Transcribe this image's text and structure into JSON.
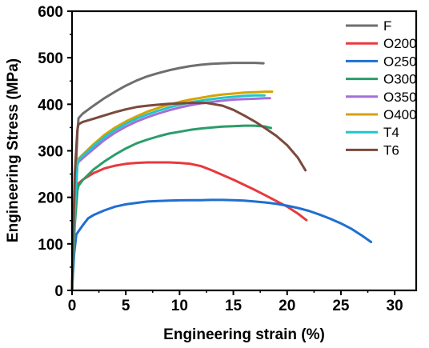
{
  "chart_data": {
    "type": "line",
    "xlabel": "Engineering strain (%)",
    "ylabel": "Engineering Stress (MPa)",
    "xlim": [
      0,
      32
    ],
    "ylim": [
      0,
      600
    ],
    "x_ticks": [
      0,
      5,
      10,
      15,
      20,
      25,
      30
    ],
    "y_ticks": [
      0,
      100,
      200,
      300,
      400,
      500,
      600
    ],
    "grid": false,
    "legend_position": "top-right",
    "series": [
      {
        "name": "F",
        "color": "#6e6e6e",
        "points": [
          [
            0,
            0
          ],
          [
            0.25,
            200
          ],
          [
            0.5,
            340
          ],
          [
            0.6,
            370
          ],
          [
            1,
            380
          ],
          [
            2,
            397
          ],
          [
            3,
            413
          ],
          [
            4,
            427
          ],
          [
            5,
            440
          ],
          [
            6,
            451
          ],
          [
            7,
            460
          ],
          [
            8,
            467
          ],
          [
            9,
            473
          ],
          [
            10,
            478
          ],
          [
            11,
            482
          ],
          [
            12,
            485
          ],
          [
            13,
            487
          ],
          [
            14,
            488
          ],
          [
            15,
            489
          ],
          [
            16,
            489
          ],
          [
            17,
            489
          ],
          [
            17.8,
            488
          ]
        ]
      },
      {
        "name": "O200",
        "color": "#e8393d",
        "points": [
          [
            0,
            0
          ],
          [
            0.25,
            150
          ],
          [
            0.5,
            222
          ],
          [
            0.6,
            230
          ],
          [
            1,
            238
          ],
          [
            2,
            252
          ],
          [
            3,
            262
          ],
          [
            4,
            268
          ],
          [
            5,
            272
          ],
          [
            6,
            274
          ],
          [
            7,
            275
          ],
          [
            8,
            275
          ],
          [
            9,
            275
          ],
          [
            10,
            274
          ],
          [
            11,
            272
          ],
          [
            12,
            267
          ],
          [
            13,
            258
          ],
          [
            14,
            248
          ],
          [
            15,
            238
          ],
          [
            16,
            227
          ],
          [
            17,
            216
          ],
          [
            18,
            204
          ],
          [
            19,
            192
          ],
          [
            20,
            180
          ],
          [
            21,
            165
          ],
          [
            21.8,
            151
          ]
        ]
      },
      {
        "name": "O250",
        "color": "#1f6fd1",
        "points": [
          [
            0,
            0
          ],
          [
            0.2,
            80
          ],
          [
            0.4,
            120
          ],
          [
            0.6,
            127
          ],
          [
            1,
            140
          ],
          [
            1.5,
            155
          ],
          [
            2,
            162
          ],
          [
            3,
            172
          ],
          [
            4,
            180
          ],
          [
            5,
            185
          ],
          [
            6,
            188
          ],
          [
            7,
            191
          ],
          [
            8,
            192
          ],
          [
            9,
            193
          ],
          [
            10,
            193.5
          ],
          [
            11,
            194
          ],
          [
            12,
            194
          ],
          [
            13,
            194.5
          ],
          [
            14,
            194.5
          ],
          [
            15,
            194
          ],
          [
            16,
            193
          ],
          [
            17,
            191
          ],
          [
            18,
            189
          ],
          [
            19,
            186
          ],
          [
            20,
            182
          ],
          [
            21,
            177
          ],
          [
            22,
            171
          ],
          [
            23,
            163
          ],
          [
            24,
            154
          ],
          [
            25,
            144
          ],
          [
            26,
            132
          ],
          [
            27,
            117
          ],
          [
            27.8,
            104
          ]
        ]
      },
      {
        "name": "O300",
        "color": "#2a9d6a",
        "points": [
          [
            0,
            0
          ],
          [
            0.25,
            140
          ],
          [
            0.5,
            215
          ],
          [
            0.6,
            225
          ],
          [
            1,
            237
          ],
          [
            2,
            260
          ],
          [
            3,
            277
          ],
          [
            4,
            292
          ],
          [
            5,
            305
          ],
          [
            6,
            316
          ],
          [
            7,
            324
          ],
          [
            8,
            331
          ],
          [
            9,
            337
          ],
          [
            10,
            341
          ],
          [
            11,
            345
          ],
          [
            12,
            348
          ],
          [
            13,
            350
          ],
          [
            14,
            352
          ],
          [
            15,
            353
          ],
          [
            16,
            354
          ],
          [
            17,
            354
          ],
          [
            18,
            352
          ],
          [
            18.5,
            349
          ]
        ]
      },
      {
        "name": "O350",
        "color": "#a56fd8",
        "points": [
          [
            0,
            0
          ],
          [
            0.25,
            170
          ],
          [
            0.5,
            270
          ],
          [
            0.6,
            276
          ],
          [
            1,
            284
          ],
          [
            2,
            304
          ],
          [
            3,
            323
          ],
          [
            4,
            339
          ],
          [
            5,
            352
          ],
          [
            6,
            363
          ],
          [
            7,
            372
          ],
          [
            8,
            380
          ],
          [
            9,
            387
          ],
          [
            10,
            393
          ],
          [
            11,
            398
          ],
          [
            12,
            402
          ],
          [
            13,
            405
          ],
          [
            14,
            408
          ],
          [
            15,
            410
          ],
          [
            16,
            411
          ],
          [
            17,
            412
          ],
          [
            18,
            413
          ],
          [
            18.4,
            413
          ]
        ]
      },
      {
        "name": "O400",
        "color": "#d6a300",
        "points": [
          [
            0,
            0
          ],
          [
            0.25,
            175
          ],
          [
            0.5,
            275
          ],
          [
            0.6,
            283
          ],
          [
            1,
            292
          ],
          [
            2,
            314
          ],
          [
            3,
            334
          ],
          [
            4,
            350
          ],
          [
            5,
            363
          ],
          [
            6,
            374
          ],
          [
            7,
            384
          ],
          [
            8,
            392
          ],
          [
            9,
            399
          ],
          [
            10,
            405
          ],
          [
            11,
            410
          ],
          [
            12,
            414
          ],
          [
            13,
            418
          ],
          [
            14,
            421
          ],
          [
            15,
            423
          ],
          [
            16,
            425
          ],
          [
            17,
            426
          ],
          [
            18,
            427
          ],
          [
            18.6,
            427
          ]
        ]
      },
      {
        "name": "T4",
        "color": "#1fc6c9",
        "points": [
          [
            0,
            0
          ],
          [
            0.25,
            172
          ],
          [
            0.5,
            272
          ],
          [
            0.6,
            280
          ],
          [
            1,
            289
          ],
          [
            2,
            310
          ],
          [
            3,
            329
          ],
          [
            4,
            345
          ],
          [
            5,
            358
          ],
          [
            6,
            369
          ],
          [
            7,
            378
          ],
          [
            8,
            386
          ],
          [
            9,
            393
          ],
          [
            10,
            399
          ],
          [
            11,
            404
          ],
          [
            12,
            408
          ],
          [
            13,
            411
          ],
          [
            14,
            414
          ],
          [
            15,
            416
          ],
          [
            16,
            418
          ],
          [
            17,
            419
          ],
          [
            17.9,
            419
          ]
        ]
      },
      {
        "name": "T6",
        "color": "#7a4a3c",
        "points": [
          [
            0,
            0
          ],
          [
            0.25,
            250
          ],
          [
            0.5,
            345
          ],
          [
            0.6,
            357
          ],
          [
            1,
            362
          ],
          [
            2,
            369
          ],
          [
            3,
            376
          ],
          [
            4,
            383
          ],
          [
            5,
            389
          ],
          [
            6,
            394
          ],
          [
            7,
            397
          ],
          [
            8,
            399
          ],
          [
            9,
            401
          ],
          [
            10,
            402
          ],
          [
            11,
            403
          ],
          [
            12,
            403
          ],
          [
            12.5,
            403
          ],
          [
            13,
            401
          ],
          [
            14,
            397
          ],
          [
            15,
            388
          ],
          [
            16,
            376
          ],
          [
            17,
            363
          ],
          [
            18,
            348
          ],
          [
            19,
            332
          ],
          [
            20,
            312
          ],
          [
            21,
            285
          ],
          [
            21.7,
            258
          ]
        ]
      }
    ]
  }
}
